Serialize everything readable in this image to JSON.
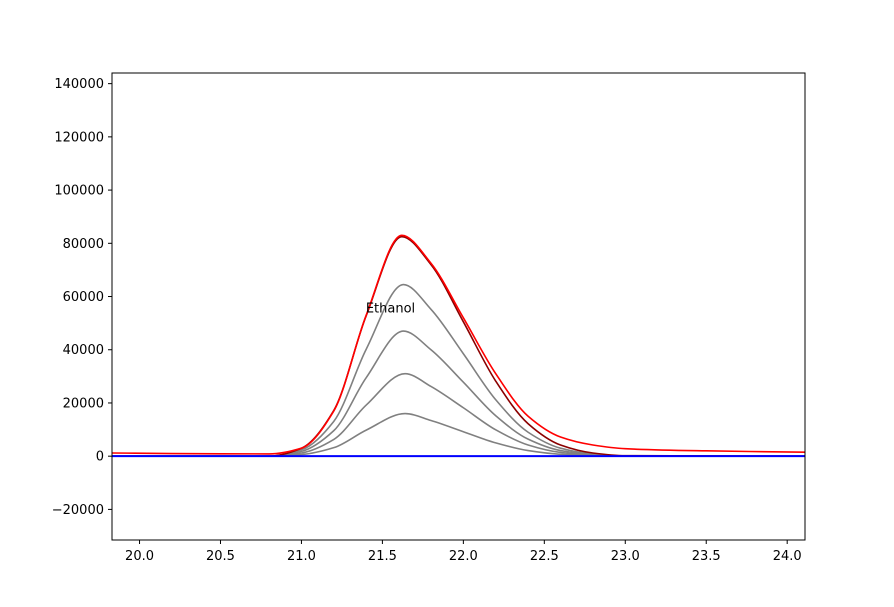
{
  "chart_data": {
    "type": "line",
    "title": "",
    "xlabel": "",
    "ylabel": "",
    "xlim": [
      19.83,
      24.11
    ],
    "ylim": [
      -31500,
      144000
    ],
    "x_ticks": [
      {
        "value": 20.0,
        "label": "20.0"
      },
      {
        "value": 20.5,
        "label": "20.5"
      },
      {
        "value": 21.0,
        "label": "21.0"
      },
      {
        "value": 21.5,
        "label": "21.5"
      },
      {
        "value": 22.0,
        "label": "22.0"
      },
      {
        "value": 22.5,
        "label": "22.5"
      },
      {
        "value": 23.0,
        "label": "23.0"
      },
      {
        "value": 23.5,
        "label": "23.5"
      },
      {
        "value": 24.0,
        "label": "24.0"
      }
    ],
    "y_ticks": [
      {
        "value": -20000,
        "label": "−20000"
      },
      {
        "value": 0,
        "label": "0"
      },
      {
        "value": 20000,
        "label": "20000"
      },
      {
        "value": 40000,
        "label": "40000"
      },
      {
        "value": 60000,
        "label": "60000"
      },
      {
        "value": 80000,
        "label": "80000"
      },
      {
        "value": 100000,
        "label": "100000"
      },
      {
        "value": 120000,
        "label": "120000"
      },
      {
        "value": 140000,
        "label": "140000"
      }
    ],
    "grid": false,
    "annotations": [
      {
        "text": "Ethanol",
        "x": 21.55,
        "y": 54000
      }
    ],
    "series": [
      {
        "role": "component",
        "color": "#808080",
        "x": [
          19.83,
          20.8,
          21.0,
          21.2,
          21.4,
          21.64,
          21.8,
          22.0,
          22.2,
          22.4,
          22.6,
          22.8,
          23.0,
          24.11
        ],
        "y": [
          0,
          0,
          600,
          3200,
          9800,
          16000,
          13400,
          9200,
          5000,
          2100,
          700,
          200,
          0,
          0
        ]
      },
      {
        "role": "component",
        "color": "#808080",
        "x": [
          19.83,
          20.8,
          21.0,
          21.2,
          21.4,
          21.64,
          21.8,
          22.0,
          22.2,
          22.4,
          22.6,
          22.8,
          23.0,
          24.11
        ],
        "y": [
          0,
          0,
          1200,
          6300,
          19200,
          31000,
          26200,
          18200,
          9900,
          4200,
          1400,
          400,
          0,
          0
        ]
      },
      {
        "role": "component",
        "color": "#808080",
        "x": [
          19.83,
          20.8,
          21.0,
          21.2,
          21.4,
          21.63,
          21.8,
          22.0,
          22.2,
          22.4,
          22.6,
          22.8,
          23.0,
          24.11
        ],
        "y": [
          0,
          0,
          1800,
          9600,
          29500,
          47000,
          40000,
          27800,
          15200,
          6400,
          2100,
          600,
          0,
          0
        ]
      },
      {
        "role": "component",
        "color": "#808080",
        "x": [
          19.83,
          20.8,
          21.0,
          21.2,
          21.4,
          21.63,
          21.8,
          22.0,
          22.2,
          22.4,
          22.6,
          22.8,
          23.0,
          24.11
        ],
        "y": [
          0,
          0,
          2400,
          13100,
          40200,
          64500,
          55200,
          38500,
          21200,
          9000,
          3000,
          800,
          0,
          0
        ]
      },
      {
        "role": "fit",
        "color": "#8b0000",
        "x": [
          19.83,
          20.8,
          21.0,
          21.2,
          21.4,
          21.62,
          21.8,
          22.0,
          22.2,
          22.4,
          22.6,
          22.8,
          23.0,
          24.11
        ],
        "y": [
          0,
          0,
          3000,
          17200,
          52800,
          82500,
          72000,
          50500,
          28200,
          12200,
          4200,
          1200,
          200,
          0
        ]
      },
      {
        "role": "data",
        "color": "#ff0000",
        "x": [
          19.83,
          20.2,
          20.5,
          20.8,
          21.0,
          21.2,
          21.4,
          21.62,
          21.8,
          22.0,
          22.2,
          22.4,
          22.6,
          22.8,
          23.0,
          23.5,
          24.11
        ],
        "y": [
          1200,
          1000,
          900,
          850,
          3000,
          17000,
          53000,
          83000,
          72500,
          52000,
          31000,
          15000,
          7200,
          4200,
          2800,
          2000,
          1500
        ]
      },
      {
        "role": "baseline",
        "color": "#0000ff",
        "x": [
          19.83,
          24.11
        ],
        "y": [
          0,
          0
        ]
      }
    ]
  }
}
